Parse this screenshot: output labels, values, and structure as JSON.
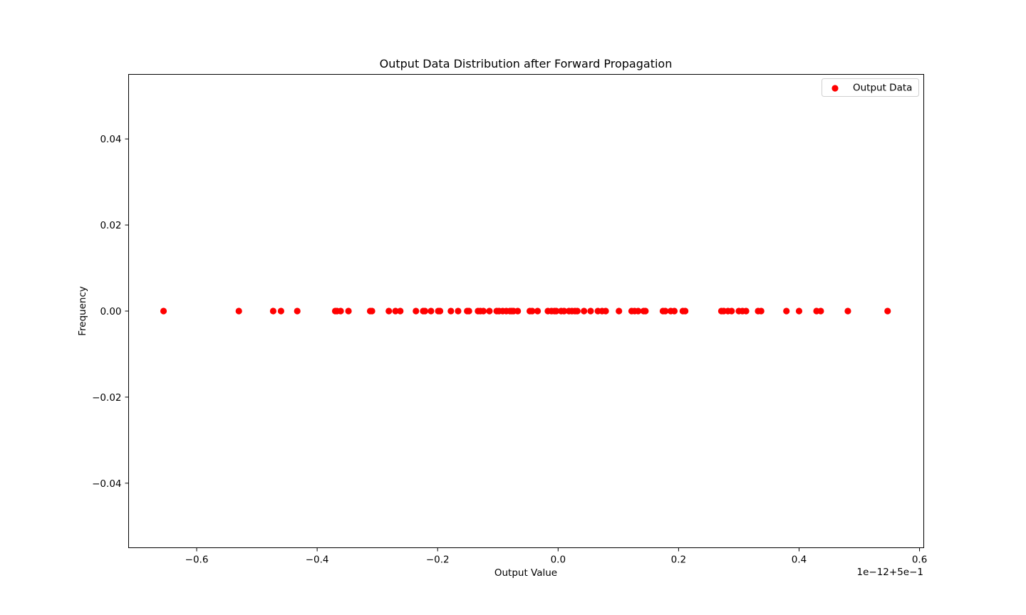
{
  "chart_data": {
    "type": "scatter",
    "title": "Output Data Distribution after Forward Propagation",
    "xlabel": "Output Value",
    "ylabel": "Frequency",
    "offset_label": "1e−12+5e−1",
    "xlim": [
      -0.713,
      0.607
    ],
    "ylim": [
      -0.055,
      0.055
    ],
    "xticks": [
      -0.6,
      -0.4,
      -0.2,
      0.0,
      0.2,
      0.4,
      0.6
    ],
    "xtick_labels": [
      "−0.6",
      "−0.4",
      "−0.2",
      "0.0",
      "0.2",
      "0.4",
      "0.6"
    ],
    "yticks": [
      -0.04,
      -0.02,
      0.0,
      0.02,
      0.04
    ],
    "ytick_labels": [
      "−0.04",
      "−0.02",
      "0.00",
      "0.02",
      "0.04"
    ],
    "grid": false,
    "legend": {
      "position": "top-right",
      "entries": [
        "Output Data"
      ]
    },
    "series": [
      {
        "name": "Output Data",
        "color": "#ff0000",
        "x": [
          -0.655,
          -0.53,
          -0.473,
          -0.46,
          -0.433,
          -0.37,
          -0.367,
          -0.361,
          -0.348,
          -0.312,
          -0.309,
          -0.281,
          -0.27,
          -0.262,
          -0.236,
          -0.224,
          -0.221,
          -0.211,
          -0.199,
          -0.196,
          -0.178,
          -0.166,
          -0.151,
          -0.148,
          -0.133,
          -0.129,
          -0.124,
          -0.114,
          -0.102,
          -0.098,
          -0.092,
          -0.086,
          -0.08,
          -0.077,
          -0.074,
          -0.067,
          -0.047,
          -0.043,
          -0.034,
          -0.017,
          -0.011,
          -0.006,
          -0.003,
          0.005,
          0.01,
          0.018,
          0.023,
          0.028,
          0.032,
          0.043,
          0.054,
          0.066,
          0.073,
          0.079,
          0.101,
          0.122,
          0.127,
          0.133,
          0.142,
          0.145,
          0.174,
          0.178,
          0.187,
          0.193,
          0.207,
          0.211,
          0.271,
          0.275,
          0.282,
          0.288,
          0.3,
          0.306,
          0.312,
          0.332,
          0.337,
          0.379,
          0.4,
          0.429,
          0.436,
          0.481,
          0.547
        ],
        "y": [
          0,
          0,
          0,
          0,
          0,
          0,
          0,
          0,
          0,
          0,
          0,
          0,
          0,
          0,
          0,
          0,
          0,
          0,
          0,
          0,
          0,
          0,
          0,
          0,
          0,
          0,
          0,
          0,
          0,
          0,
          0,
          0,
          0,
          0,
          0,
          0,
          0,
          0,
          0,
          0,
          0,
          0,
          0,
          0,
          0,
          0,
          0,
          0,
          0,
          0,
          0,
          0,
          0,
          0,
          0,
          0,
          0,
          0,
          0,
          0,
          0,
          0,
          0,
          0,
          0,
          0,
          0,
          0,
          0,
          0,
          0,
          0,
          0,
          0,
          0,
          0,
          0,
          0,
          0,
          0,
          0
        ]
      }
    ]
  }
}
